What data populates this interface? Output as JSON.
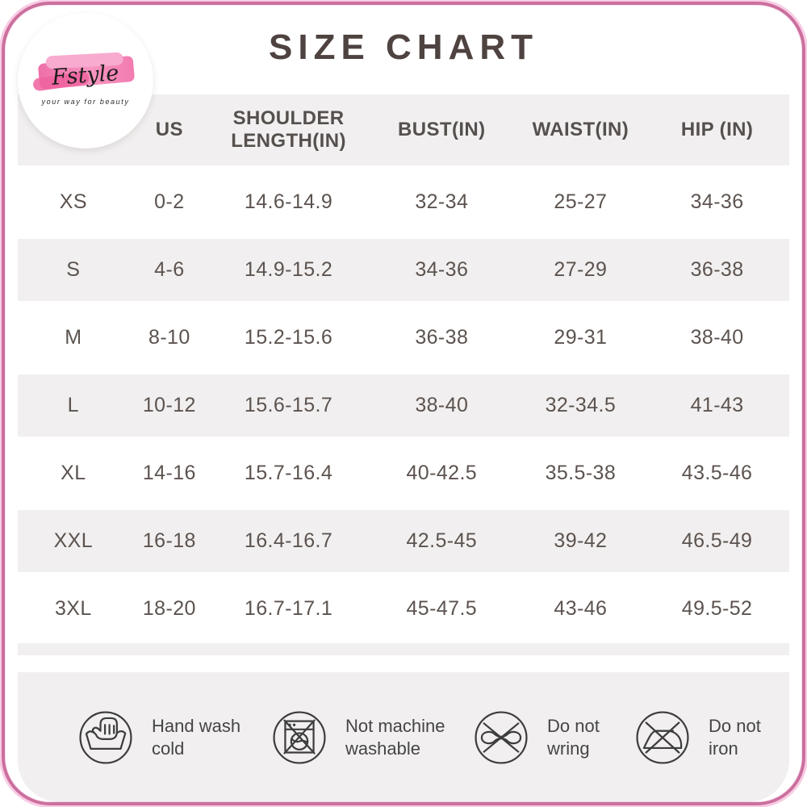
{
  "brand": {
    "name": "Fstyle",
    "tagline": "your way for beauty"
  },
  "chart_data": {
    "type": "table",
    "title": "SIZE CHART",
    "columns": [
      "",
      "US",
      "SHOULDER LENGTH(IN)",
      "BUST(IN)",
      "WAIST(IN)",
      "HIP (IN)"
    ],
    "rows": [
      [
        "XS",
        "0-2",
        "14.6-14.9",
        "32-34",
        "25-27",
        "34-36"
      ],
      [
        "S",
        "4-6",
        "14.9-15.2",
        "34-36",
        "27-29",
        "36-38"
      ],
      [
        "M",
        "8-10",
        "15.2-15.6",
        "36-38",
        "29-31",
        "38-40"
      ],
      [
        "L",
        "10-12",
        "15.6-15.7",
        "38-40",
        "32-34.5",
        "41-43"
      ],
      [
        "XL",
        "14-16",
        "15.7-16.4",
        "40-42.5",
        "35.5-38",
        "43.5-46"
      ],
      [
        "XXL",
        "16-18",
        "16.4-16.7",
        "42.5-45",
        "39-42",
        "46.5-49"
      ],
      [
        "3XL",
        "18-20",
        "16.7-17.1",
        "45-47.5",
        "43-46",
        "49.5-52"
      ]
    ],
    "layout": {
      "striped": true,
      "stripe_pattern": "even rows white, odd rows gray",
      "grid": false
    }
  },
  "care": {
    "items": [
      {
        "icon": "hand-wash-icon",
        "label": "Hand wash cold"
      },
      {
        "icon": "do-not-machine-wash-icon",
        "label": "Not machine washable"
      },
      {
        "icon": "do-not-wring-icon",
        "label": "Do not wring"
      },
      {
        "icon": "do-not-iron-icon",
        "label": "Do not iron"
      }
    ]
  },
  "colors": {
    "border_pink": "#cb6f9e",
    "brush_pink": "#ee6fa9",
    "row_gray": "#f1efef",
    "title_text": "#4e4340",
    "body_text": "#5c534f",
    "icon_stroke": "#3d3d3d"
  }
}
